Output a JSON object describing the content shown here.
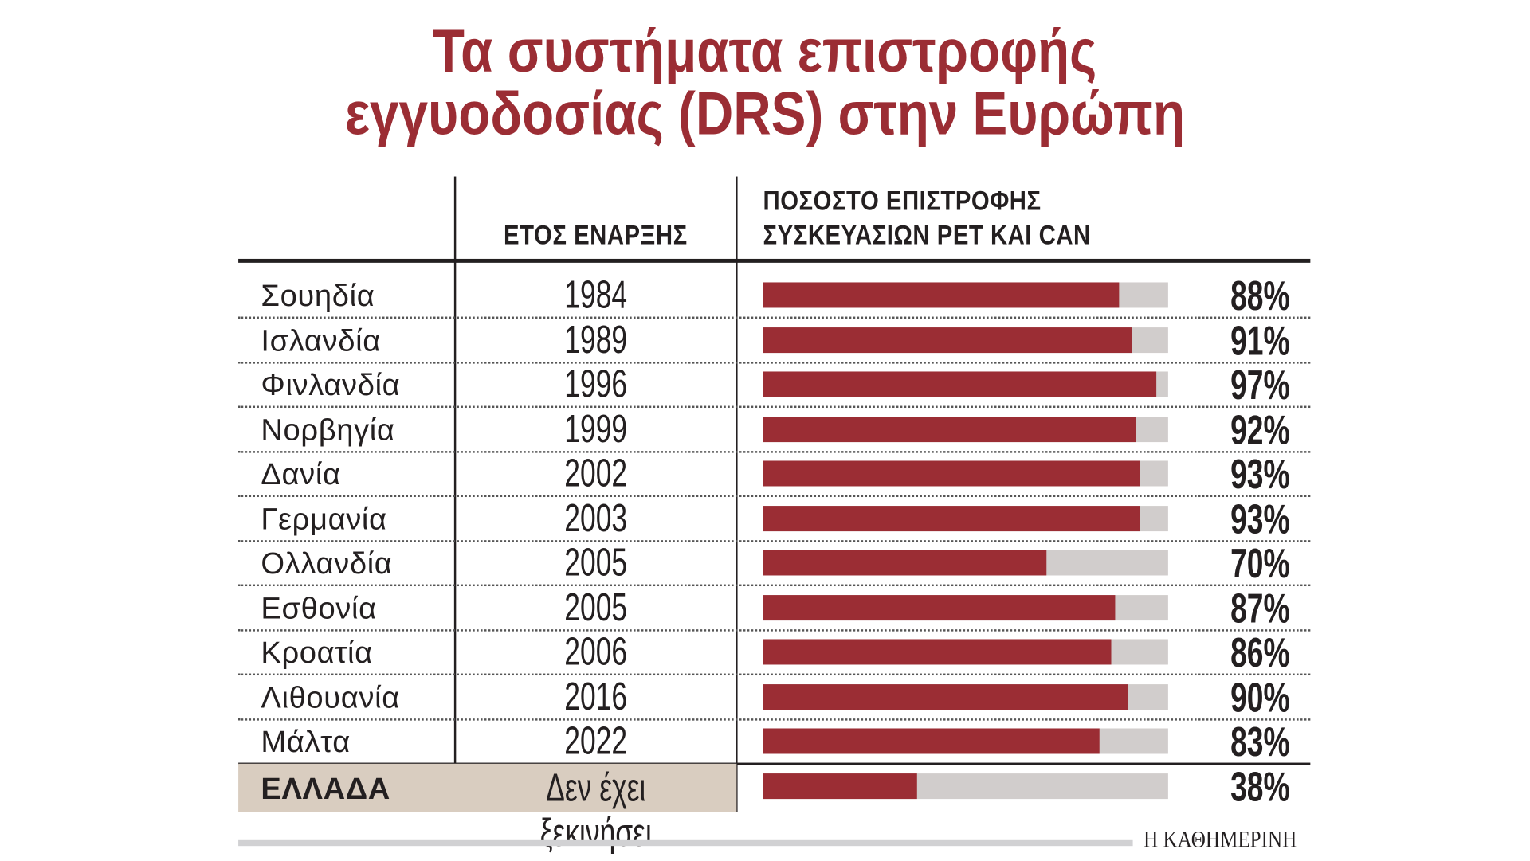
{
  "chart_data": {
    "type": "bar",
    "title": [
      "Τα συστήματα επιστροφής",
      "εγγυοδοσίας (DRS) στην Ευρώπη"
    ],
    "columns": {
      "year": "ΕΤΟΣ ΕΝΑΡΞΗΣ",
      "rate": [
        "ΠΟΣΟΣΤΟ ΕΠΙΣΤΡΟΦΗΣ",
        "ΣΥΣΚΕΥΑΣΙΩΝ PET ΚΑΙ CAN"
      ]
    },
    "xlim": [
      0,
      100
    ],
    "rows": [
      {
        "country": "Σουηδία",
        "year": "1984",
        "value": 88,
        "label": "88%"
      },
      {
        "country": "Ισλανδία",
        "year": "1989",
        "value": 91,
        "label": "91%"
      },
      {
        "country": "Φινλανδία",
        "year": "1996",
        "value": 97,
        "label": "97%"
      },
      {
        "country": "Νορβηγία",
        "year": "1999",
        "value": 92,
        "label": "92%"
      },
      {
        "country": "Δανία",
        "year": "2002",
        "value": 93,
        "label": "93%"
      },
      {
        "country": "Γερμανία",
        "year": "2003",
        "value": 93,
        "label": "93%"
      },
      {
        "country": "Ολλανδία",
        "year": "2005",
        "value": 70,
        "label": "70%"
      },
      {
        "country": "Εσθονία",
        "year": "2005",
        "value": 87,
        "label": "87%"
      },
      {
        "country": "Κροατία",
        "year": "2006",
        "value": 86,
        "label": "86%"
      },
      {
        "country": "Λιθουανία",
        "year": "2016",
        "value": 90,
        "label": "90%"
      },
      {
        "country": "Μάλτα",
        "year": "2022",
        "value": 83,
        "label": "83%"
      },
      {
        "country": "ΕΛΛΑΔΑ",
        "year": "Δεν έχει ξεκινήσει",
        "value": 38,
        "label": "38%"
      }
    ],
    "colors": {
      "bar": "#9b2d34",
      "track": "#d1cdcc",
      "highlight": "#d9cdc0",
      "title": "#9b2d34"
    }
  },
  "footer": {
    "brand": "Η ΚΑΘΗΜΕΡΙΝΗ"
  }
}
